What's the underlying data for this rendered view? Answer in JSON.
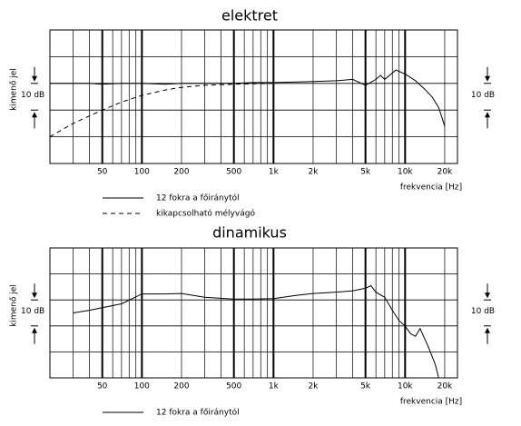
{
  "chart_data": [
    {
      "type": "line",
      "title": "elektret",
      "xlabel": "frekvencia [Hz]",
      "ylabel": "kimenő jel",
      "scale_label": "10 dB",
      "xscale": "log",
      "xlim": [
        20,
        25000
      ],
      "ylim": [
        -30,
        20
      ],
      "ygrid": [
        -30,
        -20,
        -10,
        0,
        10,
        20
      ],
      "xticks": [
        50,
        100,
        200,
        500,
        {
          "value": 1000,
          "label": "1k"
        },
        {
          "value": 2000,
          "label": "2k"
        },
        {
          "value": 5000,
          "label": "5k"
        },
        {
          "value": 10000,
          "label": "10k"
        },
        {
          "value": 20000,
          "label": "20k"
        }
      ],
      "series": [
        {
          "name": "12 fokra a főiránytól",
          "color": "#000000",
          "dash": false,
          "x": [
            20,
            30,
            40,
            50,
            70,
            100,
            150,
            200,
            300,
            500,
            700,
            1000,
            1500,
            2000,
            3000,
            4000,
            5000,
            6000,
            6500,
            7000,
            8500,
            10000,
            12000,
            14000,
            16000,
            18000,
            20000
          ],
          "values": [
            0,
            0,
            0,
            -0.3,
            0,
            0,
            -0.3,
            0,
            0,
            0,
            0.3,
            0.3,
            0.5,
            0.7,
            1,
            1.5,
            -0.7,
            1.5,
            3,
            1.5,
            5,
            3.5,
            1,
            -2,
            -5,
            -9,
            -16
          ]
        },
        {
          "name": "kikapcsolható mélyvágó",
          "color": "#000000",
          "dash": true,
          "x": [
            20,
            30,
            50,
            70,
            100,
            150,
            200,
            300,
            500,
            1000
          ],
          "values": [
            -20,
            -15,
            -10,
            -7,
            -4.5,
            -2.5,
            -1.5,
            -0.7,
            -0.3,
            0
          ]
        }
      ]
    },
    {
      "type": "line",
      "title": "dinamikus",
      "xlabel": "frekvencia [Hz]",
      "ylabel": "kimenő jel",
      "scale_label": "10 dB",
      "xscale": "log",
      "xlim": [
        20,
        25000
      ],
      "ylim": [
        -30,
        20
      ],
      "ygrid": [
        -30,
        -20,
        -10,
        0,
        10,
        20
      ],
      "xticks": [
        50,
        100,
        200,
        500,
        {
          "value": 1000,
          "label": "1k"
        },
        {
          "value": 2000,
          "label": "2k"
        },
        {
          "value": 5000,
          "label": "5k"
        },
        {
          "value": 10000,
          "label": "10k"
        },
        {
          "value": 20000,
          "label": "20k"
        }
      ],
      "series": [
        {
          "name": "12 fokra a főiránytól",
          "color": "#000000",
          "dash": false,
          "x": [
            30,
            40,
            50,
            70,
            100,
            150,
            200,
            300,
            500,
            700,
            1000,
            1500,
            2000,
            3000,
            4000,
            5000,
            5500,
            6000,
            7000,
            8000,
            9000,
            10000,
            11000,
            12000,
            13000,
            15000,
            17000,
            18000
          ],
          "values": [
            -5,
            -4,
            -3,
            -1.5,
            2.3,
            2.3,
            2.5,
            1,
            0.3,
            0.3,
            0.5,
            1.8,
            2.5,
            3,
            3.5,
            4.5,
            5.5,
            3,
            1,
            -4,
            -8,
            -10,
            -13,
            -14,
            -11,
            -18,
            -25,
            -30
          ]
        }
      ]
    }
  ]
}
